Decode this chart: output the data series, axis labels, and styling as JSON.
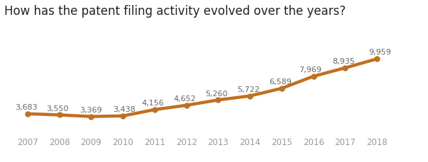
{
  "title": "How has the patent filing activity evolved over the years?",
  "years": [
    2007,
    2008,
    2009,
    2010,
    2011,
    2012,
    2013,
    2014,
    2015,
    2016,
    2017,
    2018
  ],
  "values": [
    3683,
    3550,
    3369,
    3438,
    4156,
    4652,
    5260,
    5722,
    6589,
    7969,
    8935,
    9959
  ],
  "line_color": "#c07020",
  "marker_color": "#c07020",
  "background_color": "#ffffff",
  "grid_color": "#e0e0e0",
  "title_fontsize": 12,
  "label_fontsize": 8,
  "tick_fontsize": 8.5,
  "line_width": 3.2,
  "marker_size": 5,
  "ylim": [
    1500,
    11500
  ],
  "xlim": [
    2006.4,
    2019.2
  ]
}
